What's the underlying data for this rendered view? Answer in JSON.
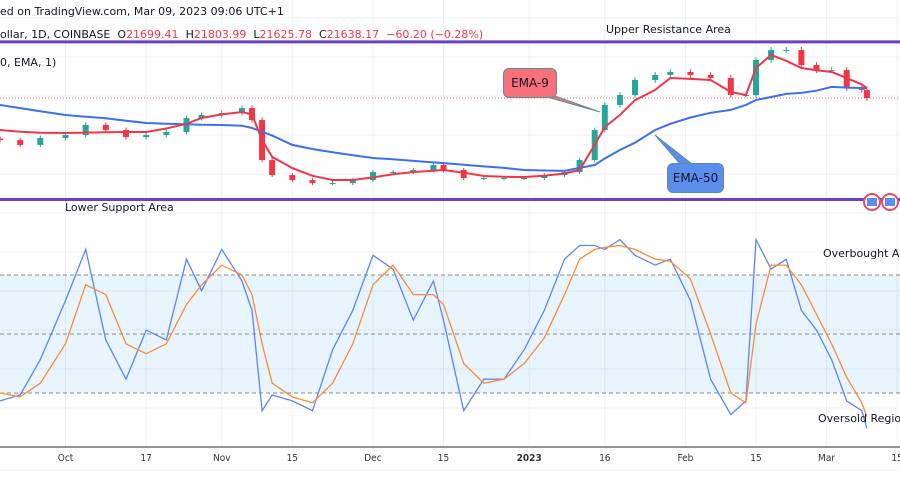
{
  "header": {
    "published": "ed on TradingView.com, Mar 09, 2023 09:06 UTC+1",
    "symbol": "ollar, 1D, COINBASE",
    "o_label": "O",
    "o_value": "21699.41",
    "h_label": "H",
    "h_value": "21803.99",
    "l_label": "L",
    "l_value": "21625.78",
    "c_label": "C",
    "c_value": "21638.17",
    "change": "−60.20 (−0.28%)",
    "indicator": "0, EMA, 1)"
  },
  "annotations": {
    "upper": "Upper Resistance Area",
    "lower": "Lower Support Area",
    "ema9": "EMA-9",
    "ema50": "EMA-50",
    "overbought": "Overbought Ar",
    "oversold": "Oversold Region"
  },
  "colors": {
    "up": "#26a69a",
    "down": "#f23645",
    "ema9": "#f23645",
    "ema50": "#3d6ff2",
    "stoch_k": "#5b86f7",
    "stoch_d": "#ff8a33",
    "level_lines": "#6a3fc1",
    "ema9_box": "#f7707a",
    "ema50_box": "#5b8def"
  },
  "chart_data": [
    {
      "type": "candlestick",
      "dates": [
        "2022-09-18",
        "2022-09-22",
        "2022-09-26",
        "2022-10-01",
        "2022-10-05",
        "2022-10-09",
        "2022-10-13",
        "2022-10-17",
        "2022-10-21",
        "2022-10-25",
        "2022-10-28",
        "2022-11-01",
        "2022-11-05",
        "2022-11-07",
        "2022-11-09",
        "2022-11-11",
        "2022-11-15",
        "2022-11-19",
        "2022-11-23",
        "2022-11-27",
        "2022-12-01",
        "2022-12-05",
        "2022-12-09",
        "2022-12-13",
        "2022-12-15",
        "2022-12-19",
        "2022-12-23",
        "2022-12-27",
        "2022-12-31",
        "2023-01-04",
        "2023-01-08",
        "2023-01-11",
        "2023-01-14",
        "2023-01-16",
        "2023-01-19",
        "2023-01-22",
        "2023-01-26",
        "2023-01-29",
        "2023-02-02",
        "2023-02-06",
        "2023-02-10",
        "2023-02-13",
        "2023-02-15",
        "2023-02-18",
        "2023-02-21",
        "2023-02-24",
        "2023-02-27",
        "2023-03-02",
        "2023-03-05",
        "2023-03-08",
        "2023-03-09"
      ],
      "close": [
        18970,
        18660,
        19100,
        19290,
        19930,
        19610,
        19160,
        19290,
        19480,
        20370,
        20560,
        20690,
        21000,
        20240,
        17700,
        16750,
        16430,
        16240,
        16240,
        16430,
        16940,
        16940,
        17070,
        17390,
        17070,
        16560,
        16560,
        16560,
        16560,
        16750,
        16940,
        17700,
        19610,
        21200,
        21830,
        22780,
        23100,
        23290,
        23100,
        22910,
        21830,
        21830,
        24050,
        24680,
        24680,
        23730,
        23410,
        23410,
        22270,
        22150,
        21638.17
      ],
      "ema9": [
        19610,
        19500,
        19430,
        19420,
        19440,
        19470,
        19480,
        19480,
        19700,
        20000,
        20370,
        20600,
        20750,
        20600,
        18970,
        17900,
        17190,
        16700,
        16435,
        16435,
        16600,
        16800,
        16940,
        17020,
        17070,
        16900,
        16690,
        16640,
        16625,
        16700,
        16850,
        17070,
        18660,
        19800,
        20560,
        21500,
        22150,
        22910,
        22850,
        22780,
        22020,
        21830,
        23540,
        24370,
        24000,
        23540,
        23400,
        23290,
        22900,
        22500,
        22270
      ],
      "ema50": [
        21194,
        21000,
        20800,
        20560,
        20450,
        20350,
        20200,
        20050,
        20000,
        19970,
        19940,
        19925,
        19880,
        19735,
        19500,
        19250,
        18660,
        18400,
        18200,
        18000,
        17830,
        17750,
        17650,
        17550,
        17510,
        17400,
        17300,
        17200,
        17070,
        17040,
        17010,
        17200,
        17390,
        17800,
        18340,
        18800,
        19610,
        20000,
        20400,
        20700,
        20880,
        21200,
        21510,
        21700,
        21900,
        21960,
        22100,
        22340,
        22300,
        22270,
        22270
      ],
      "levels": {
        "upper_resistance": 25200,
        "lower_support": 15200
      }
    },
    {
      "type": "line",
      "name": "stochastic",
      "levels": {
        "overbought": 80,
        "middle": 50,
        "oversold": 20
      },
      "ylim": [
        0,
        100
      ],
      "k": [
        16,
        19,
        37,
        67,
        93,
        47,
        27,
        52,
        47,
        88,
        72,
        93,
        77,
        62,
        11,
        19,
        16,
        11,
        42,
        62,
        90,
        83,
        57,
        77,
        57,
        11,
        27,
        27,
        42,
        62,
        88,
        95,
        95,
        93,
        98,
        90,
        85,
        88,
        67,
        27,
        9,
        16,
        98,
        83,
        88,
        62,
        52,
        37,
        16,
        11,
        2
      ],
      "d": [
        20,
        18,
        25,
        45,
        75,
        70,
        45,
        40,
        45,
        65,
        75,
        85,
        80,
        70,
        45,
        25,
        18,
        15,
        25,
        45,
        75,
        85,
        70,
        70,
        65,
        35,
        25,
        27,
        35,
        48,
        70,
        88,
        93,
        94,
        95,
        93,
        88,
        87,
        78,
        50,
        20,
        15,
        55,
        85,
        85,
        75,
        60,
        45,
        28,
        15,
        8
      ]
    }
  ],
  "x_axis": {
    "ticks": [
      {
        "label": "Oct",
        "date": "2022-10-01"
      },
      {
        "label": "17",
        "date": "2022-10-17"
      },
      {
        "label": "Nov",
        "date": "2022-11-01"
      },
      {
        "label": "15",
        "date": "2022-11-15"
      },
      {
        "label": "Dec",
        "date": "2022-12-01"
      },
      {
        "label": "15",
        "date": "2022-12-15"
      },
      {
        "label": "2023",
        "date": "2023-01-01"
      },
      {
        "label": "16",
        "date": "2023-01-16"
      },
      {
        "label": "Feb",
        "date": "2023-02-01"
      },
      {
        "label": "15",
        "date": "2023-02-15"
      },
      {
        "label": "Mar",
        "date": "2023-03-01"
      },
      {
        "label": "15",
        "date": "2023-03-15"
      }
    ]
  }
}
